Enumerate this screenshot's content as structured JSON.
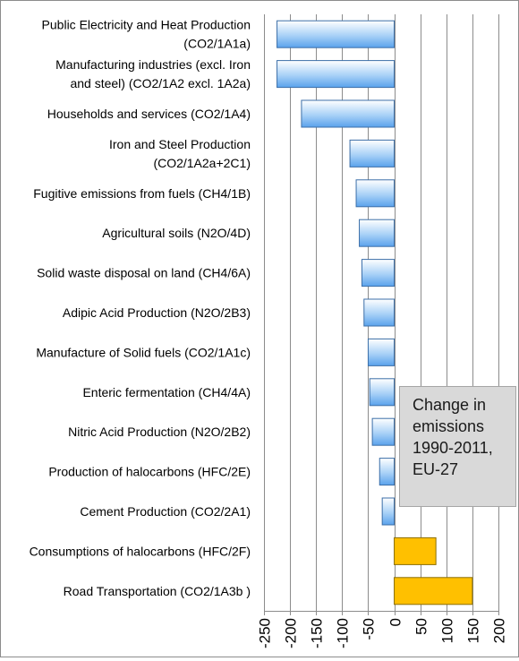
{
  "chart_data": {
    "type": "bar",
    "orientation": "horizontal",
    "categories": [
      [
        "Public Electricity and Heat Production",
        "(CO2/1A1a)"
      ],
      [
        "Manufacturing industries (excl. Iron",
        "and steel) (CO2/1A2 excl. 1A2a)"
      ],
      [
        "Households and services (CO2/1A4)"
      ],
      [
        "Iron and Steel Production",
        "(CO2/1A2a+2C1)"
      ],
      [
        "Fugitive emissions from fuels (CH4/1B)"
      ],
      [
        "Agricultural soils (N2O/4D)"
      ],
      [
        "Solid waste disposal on land (CH4/6A)"
      ],
      [
        "Adipic Acid Production (N2O/2B3)"
      ],
      [
        "Manufacture of Solid fuels (CO2/1A1c)"
      ],
      [
        "Enteric fermentation (CH4/4A)"
      ],
      [
        "Nitric Acid Production (N2O/2B2)"
      ],
      [
        "Production of halocarbons (HFC/2E)"
      ],
      [
        "Cement Production (CO2/2A1)"
      ],
      [
        "Consumptions of halocarbons (HFC/2F)"
      ],
      [
        "Road Transportation (CO2/1A3b )"
      ]
    ],
    "values": [
      -225,
      -225,
      -178,
      -85,
      -73,
      -67,
      -62,
      -58,
      -50,
      -47,
      -42,
      -28,
      -23,
      80,
      150
    ],
    "xlim": [
      -250,
      200
    ],
    "xticks": [
      "-250",
      "-200",
      "-150",
      "-100",
      "-50",
      "0",
      "50",
      "100",
      "150",
      "200"
    ],
    "grid": "vertical",
    "text_box": [
      "Change in",
      "emissions",
      "1990-2011,",
      "EU-27"
    ],
    "colors": {
      "negative_bar": "#79b6f2",
      "positive_bar": "#ffc000",
      "grid": "#8c8c8c"
    }
  }
}
